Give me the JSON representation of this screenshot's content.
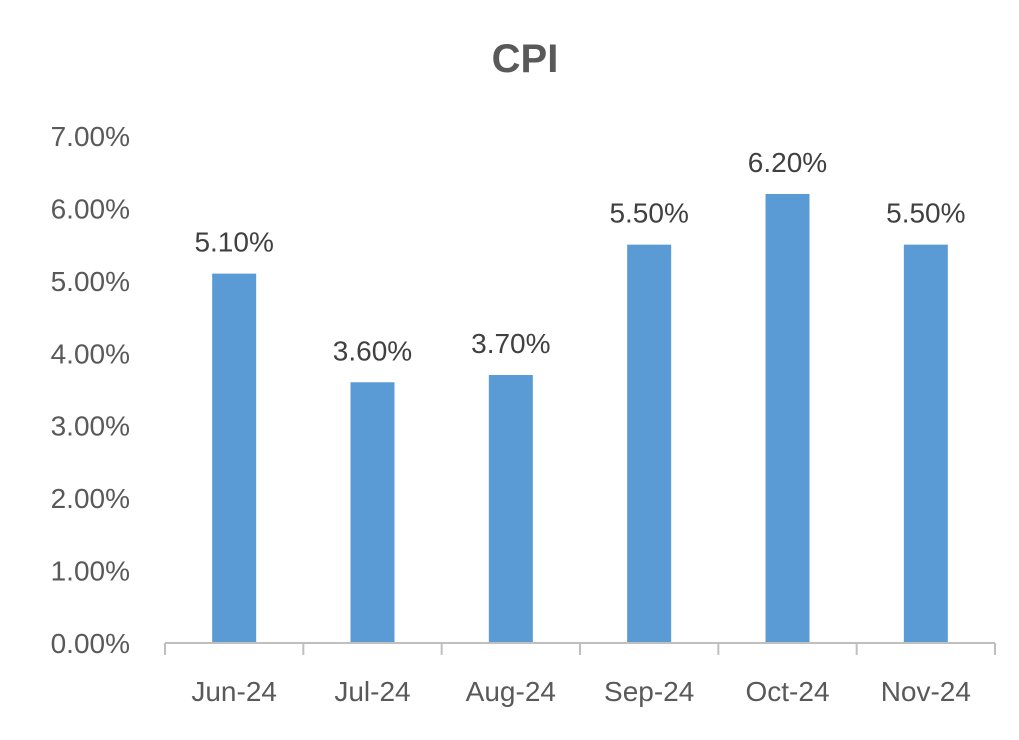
{
  "chart_data": {
    "type": "bar",
    "title": "CPI",
    "xlabel": "",
    "ylabel": "",
    "categories": [
      "Jun-24",
      "Jul-24",
      "Aug-24",
      "Sep-24",
      "Oct-24",
      "Nov-24"
    ],
    "values": [
      5.1,
      3.6,
      3.7,
      5.5,
      6.2,
      5.5
    ],
    "data_labels": [
      "5.10%",
      "3.60%",
      "3.70%",
      "5.50%",
      "6.20%",
      "5.50%"
    ],
    "y_ticks": [
      0,
      1,
      2,
      3,
      4,
      5,
      6,
      7
    ],
    "y_tick_labels": [
      "0.00%",
      "1.00%",
      "2.00%",
      "3.00%",
      "4.00%",
      "5.00%",
      "6.00%",
      "7.00%"
    ],
    "ylim": [
      0,
      7
    ],
    "grid": false,
    "legend": "none",
    "bar_color": "#5b9bd5"
  }
}
